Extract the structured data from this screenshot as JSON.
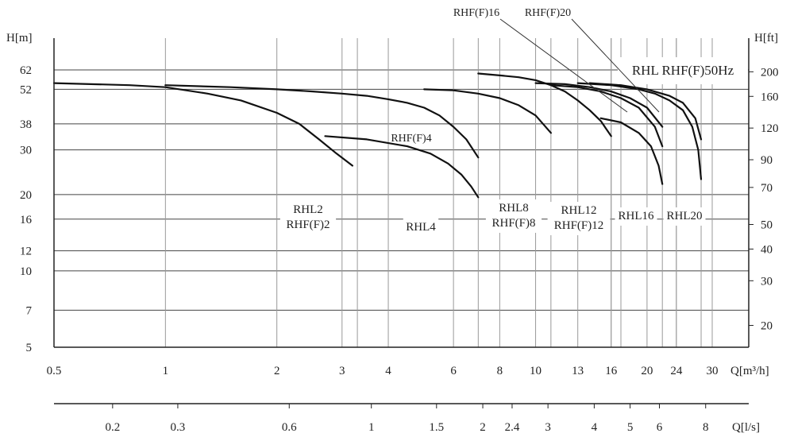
{
  "chart_data": {
    "type": "line",
    "title": "RHL RHF(F)50Hz",
    "x_scale": "log",
    "y_scale": "log",
    "xlabel": "Q[m³/h]",
    "ylabel_left": "H[m]",
    "ylabel_right": "H[ft]",
    "xlabel_secondary": "Q[l/s]",
    "xlim": [
      0.5,
      35
    ],
    "ylim": [
      5,
      80
    ],
    "grid": true,
    "x_ticks": [
      {
        "value": 0.5,
        "label": "0.5"
      },
      {
        "value": 1,
        "label": "1"
      },
      {
        "value": 2,
        "label": "2"
      },
      {
        "value": 3,
        "label": "3"
      },
      {
        "value": 4,
        "label": "4"
      },
      {
        "value": 6,
        "label": "6"
      },
      {
        "value": 8,
        "label": "8"
      },
      {
        "value": 10,
        "label": "10"
      },
      {
        "value": 13,
        "label": "13"
      },
      {
        "value": 16,
        "label": "16"
      },
      {
        "value": 20,
        "label": "20"
      },
      {
        "value": 24,
        "label": "24"
      },
      {
        "value": 30,
        "label": "30"
      }
    ],
    "x_ticks_secondary": [
      {
        "value": 0.2,
        "label": "0.2"
      },
      {
        "value": 0.3,
        "label": "0.3"
      },
      {
        "value": 0.6,
        "label": "0.6"
      },
      {
        "value": 1,
        "label": "1"
      },
      {
        "value": 1.5,
        "label": "1.5"
      },
      {
        "value": 2,
        "label": "2"
      },
      {
        "value": 2.4,
        "label": "2.4"
      },
      {
        "value": 3,
        "label": "3"
      },
      {
        "value": 4,
        "label": "4"
      },
      {
        "value": 5,
        "label": "5"
      },
      {
        "value": 6,
        "label": "6"
      },
      {
        "value": 8,
        "label": "8"
      }
    ],
    "y_ticks_left": [
      {
        "value": 5,
        "label": "5"
      },
      {
        "value": 7,
        "label": "7"
      },
      {
        "value": 10,
        "label": "10"
      },
      {
        "value": 12,
        "label": "12"
      },
      {
        "value": 16,
        "label": "16"
      },
      {
        "value": 20,
        "label": "20"
      },
      {
        "value": 30,
        "label": "30"
      },
      {
        "value": 38,
        "label": "38"
      },
      {
        "value": 52,
        "label": "52"
      },
      {
        "value": 62,
        "label": "62"
      }
    ],
    "y_ticks_right": [
      {
        "value": 20,
        "label": "20"
      },
      {
        "value": 30,
        "label": "30"
      },
      {
        "value": 40,
        "label": "40"
      },
      {
        "value": 50,
        "label": "50"
      },
      {
        "value": 70,
        "label": "70"
      },
      {
        "value": 90,
        "label": "90"
      },
      {
        "value": 120,
        "label": "120"
      },
      {
        "value": 160,
        "label": "160"
      },
      {
        "value": 200,
        "label": "200"
      }
    ],
    "regions": [
      {
        "lines": [
          "RHL2",
          "RHF(F)2"
        ],
        "q_min": 0.5,
        "q_max": 3.3
      },
      {
        "lines": [
          "RHL4"
        ],
        "q_min": 2.7,
        "q_max": 7
      },
      {
        "lines": [
          "RHL8",
          "RHF(F)8"
        ],
        "q_min": 7,
        "q_max": 11
      },
      {
        "lines": [
          "RHL12",
          "RHF(F)12"
        ],
        "q_min": 11,
        "q_max": 16
      },
      {
        "lines": [
          "RHL16"
        ],
        "q_min": 16,
        "q_max": 22
      },
      {
        "lines": [
          "RHL20"
        ],
        "q_min": 20,
        "q_max": 28
      }
    ],
    "annotations": [
      "RHF(F)4",
      "RHF(F)16",
      "RHF(F)20"
    ],
    "series": [
      {
        "name": "RHL2",
        "x": [
          0.5,
          0.8,
          1.0,
          1.3,
          1.6,
          2.0,
          2.3,
          2.6,
          2.9,
          3.2
        ],
        "y": [
          55,
          54,
          53,
          50,
          47,
          42,
          38,
          33,
          29,
          26
        ]
      },
      {
        "name": "RHF(F)2",
        "x": [
          1.0,
          1.5,
          2.0,
          2.5,
          3.0,
          3.5,
          4.0,
          4.5,
          5.0,
          5.5,
          6.0,
          6.5,
          7.0
        ],
        "y": [
          54,
          53,
          52,
          51,
          50,
          49,
          47.5,
          46,
          44,
          41,
          37,
          33,
          28
        ]
      },
      {
        "name": "RHL4",
        "x": [
          2.7,
          3.5,
          4.5,
          5.2,
          5.8,
          6.3,
          6.7,
          7.0
        ],
        "y": [
          34,
          33,
          31,
          29,
          26.5,
          24,
          21.5,
          19.5
        ]
      },
      {
        "name": "RHL8",
        "x": [
          5.0,
          6.0,
          7.0,
          8.0,
          9.0,
          10.0,
          11.0
        ],
        "y": [
          52,
          51.5,
          50,
          48,
          45,
          41,
          35
        ]
      },
      {
        "name": "RHF(F)8",
        "x": [
          7.0,
          8.0,
          9.0,
          10.0,
          11.0,
          12.0,
          13.0,
          14.0,
          15.0,
          16.0
        ],
        "y": [
          60,
          59,
          58,
          56.5,
          54,
          51,
          47,
          43,
          39,
          34
        ]
      },
      {
        "name": "RHL12",
        "x": [
          10.0,
          12.0,
          14.0,
          16.0,
          18.0,
          20.0,
          22.0
        ],
        "y": [
          55,
          54.5,
          53,
          51,
          48,
          44,
          37
        ]
      },
      {
        "name": "RHF(F)12",
        "x": [
          11.0,
          13.0,
          15.0,
          17.0,
          19.0,
          21.0,
          22.0
        ],
        "y": [
          54,
          53,
          51,
          48,
          44,
          37,
          31
        ]
      },
      {
        "name": "RHL16",
        "x": [
          15.0,
          17.0,
          19.0,
          20.5,
          21.5,
          22.0
        ],
        "y": [
          40,
          38.5,
          35,
          31,
          26,
          22
        ]
      },
      {
        "name": "RHL20",
        "x": [
          13.0,
          16.0,
          19.0,
          21.0,
          23.0,
          25.0,
          26.5,
          27.5,
          28.0
        ],
        "y": [
          55,
          54,
          52,
          50,
          47,
          43,
          37,
          30,
          23
        ]
      },
      {
        "name": "RHF(F)20",
        "x": [
          14.0,
          17.0,
          20.0,
          23.0,
          25.0,
          27.0,
          28.0
        ],
        "y": [
          55,
          54,
          52,
          49,
          46,
          40,
          33
        ]
      }
    ]
  }
}
